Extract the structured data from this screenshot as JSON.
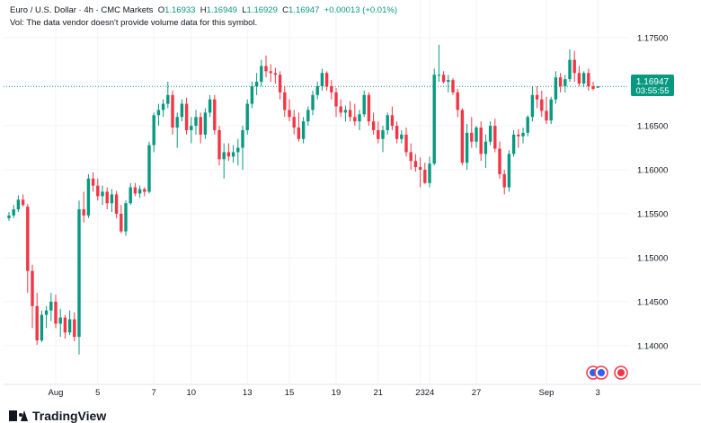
{
  "header": {
    "symbol": "Euro / U.S. Dollar · 4h · CMC Markets",
    "o_label": "O",
    "o_value": "1.16933",
    "h_label": "H",
    "h_value": "1.16949",
    "l_label": "L",
    "l_value": "1.16929",
    "c_label": "C",
    "c_value": "1.16947",
    "change": "+0.00013 (+0.01%)",
    "vol_note": "Vol: The data vendor doesn't provide volume data for this symbol."
  },
  "price_label": {
    "value": "1.16947",
    "countdown": "03:55:55"
  },
  "branding": {
    "name": "TradingView"
  },
  "colors": {
    "up": "#089981",
    "down": "#f23645",
    "grid": "#f0f3fa",
    "axis_text": "#131722",
    "price_line": "#089981"
  },
  "chart_data": {
    "type": "candlestick",
    "title": "Euro / U.S. Dollar · 4h · CMC Markets",
    "ylim": [
      1.1356,
      1.1793
    ],
    "y_ticks": [
      "1.17500",
      "1.17000",
      "1.16500",
      "1.16000",
      "1.15500",
      "1.15000",
      "1.14500",
      "1.14000"
    ],
    "x_ticks": [
      {
        "label": "Aug",
        "index": 10
      },
      {
        "label": "5",
        "index": 19
      },
      {
        "label": "7",
        "index": 31
      },
      {
        "label": "10",
        "index": 39
      },
      {
        "label": "13",
        "index": 51
      },
      {
        "label": "15",
        "index": 60
      },
      {
        "label": "19",
        "index": 70
      },
      {
        "label": "21",
        "index": 79
      },
      {
        "label": "23",
        "index": 88
      },
      {
        "label": "24",
        "index": 90
      },
      {
        "label": "27",
        "index": 100
      },
      {
        "label": "Sep",
        "index": 115
      },
      {
        "label": "3",
        "index": 126
      }
    ],
    "ohlc": [
      [
        1.1545,
        1.1552,
        1.1542,
        1.1548
      ],
      [
        1.1548,
        1.156,
        1.1545,
        1.1555
      ],
      [
        1.1555,
        1.1571,
        1.1552,
        1.1566
      ],
      [
        1.1566,
        1.1572,
        1.1558,
        1.156
      ],
      [
        1.1558,
        1.1561,
        1.146,
        1.1485
      ],
      [
        1.1485,
        1.1492,
        1.142,
        1.1445
      ],
      [
        1.1445,
        1.146,
        1.1401,
        1.1406
      ],
      [
        1.1406,
        1.144,
        1.1404,
        1.1435
      ],
      [
        1.1435,
        1.1445,
        1.142,
        1.144
      ],
      [
        1.144,
        1.146,
        1.1428,
        1.145
      ],
      [
        1.145,
        1.1458,
        1.142,
        1.1425
      ],
      [
        1.1425,
        1.1442,
        1.141,
        1.1432
      ],
      [
        1.1432,
        1.1435,
        1.1408,
        1.1415
      ],
      [
        1.1415,
        1.144,
        1.1412,
        1.143
      ],
      [
        1.143,
        1.1438,
        1.1405,
        1.141
      ],
      [
        1.141,
        1.1565,
        1.139,
        1.1555
      ],
      [
        1.1555,
        1.1575,
        1.154,
        1.1548
      ],
      [
        1.1548,
        1.1595,
        1.1545,
        1.159
      ],
      [
        1.159,
        1.1597,
        1.1575,
        1.1582
      ],
      [
        1.1582,
        1.159,
        1.1565,
        1.157
      ],
      [
        1.157,
        1.1582,
        1.156,
        1.1575
      ],
      [
        1.1575,
        1.158,
        1.1555,
        1.1562
      ],
      [
        1.1562,
        1.1578,
        1.1552,
        1.1572
      ],
      [
        1.1572,
        1.1576,
        1.1545,
        1.155
      ],
      [
        1.155,
        1.156,
        1.1528,
        1.153
      ],
      [
        1.153,
        1.1565,
        1.1525,
        1.1562
      ],
      [
        1.1562,
        1.1585,
        1.156,
        1.158
      ],
      [
        1.158,
        1.1585,
        1.157,
        1.1573
      ],
      [
        1.1573,
        1.1582,
        1.1568,
        1.1578
      ],
      [
        1.1578,
        1.158,
        1.157,
        1.1575
      ],
      [
        1.1575,
        1.1632,
        1.1573,
        1.1628
      ],
      [
        1.1628,
        1.1665,
        1.162,
        1.1662
      ],
      [
        1.1662,
        1.1675,
        1.165,
        1.1668
      ],
      [
        1.1668,
        1.168,
        1.166,
        1.1675
      ],
      [
        1.1675,
        1.17,
        1.167,
        1.1685
      ],
      [
        1.1685,
        1.169,
        1.164,
        1.1648
      ],
      [
        1.1648,
        1.1665,
        1.1625,
        1.166
      ],
      [
        1.166,
        1.168,
        1.1655,
        1.1675
      ],
      [
        1.1675,
        1.1682,
        1.164,
        1.1645
      ],
      [
        1.1645,
        1.166,
        1.163,
        1.165
      ],
      [
        1.165,
        1.1668,
        1.164,
        1.166
      ],
      [
        1.166,
        1.1665,
        1.163,
        1.164
      ],
      [
        1.164,
        1.167,
        1.1635,
        1.1665
      ],
      [
        1.1665,
        1.1685,
        1.166,
        1.168
      ],
      [
        1.168,
        1.1685,
        1.164,
        1.1645
      ],
      [
        1.1645,
        1.165,
        1.1605,
        1.1612
      ],
      [
        1.1612,
        1.163,
        1.159,
        1.162
      ],
      [
        1.162,
        1.163,
        1.161,
        1.1615
      ],
      [
        1.1615,
        1.1628,
        1.1608,
        1.162
      ],
      [
        1.162,
        1.1635,
        1.1605,
        1.1625
      ],
      [
        1.1625,
        1.165,
        1.16,
        1.1645
      ],
      [
        1.1645,
        1.168,
        1.164,
        1.1675
      ],
      [
        1.1675,
        1.17,
        1.167,
        1.1695
      ],
      [
        1.1695,
        1.171,
        1.1685,
        1.17
      ],
      [
        1.17,
        1.1725,
        1.1695,
        1.1718
      ],
      [
        1.1718,
        1.173,
        1.1705,
        1.1712
      ],
      [
        1.1712,
        1.172,
        1.17,
        1.171
      ],
      [
        1.171,
        1.1716,
        1.1698,
        1.1708
      ],
      [
        1.1708,
        1.1712,
        1.168,
        1.1688
      ],
      [
        1.1688,
        1.1695,
        1.166,
        1.1668
      ],
      [
        1.1668,
        1.168,
        1.1655,
        1.166
      ],
      [
        1.166,
        1.1668,
        1.164,
        1.1648
      ],
      [
        1.1648,
        1.1665,
        1.1632,
        1.1635
      ],
      [
        1.1635,
        1.166,
        1.163,
        1.1655
      ],
      [
        1.1655,
        1.1672,
        1.165,
        1.1668
      ],
      [
        1.1668,
        1.169,
        1.1662,
        1.1685
      ],
      [
        1.1685,
        1.17,
        1.168,
        1.1695
      ],
      [
        1.1695,
        1.1715,
        1.169,
        1.171
      ],
      [
        1.171,
        1.1712,
        1.169,
        1.1695
      ],
      [
        1.1695,
        1.1702,
        1.168,
        1.1688
      ],
      [
        1.1688,
        1.1693,
        1.166,
        1.1672
      ],
      [
        1.1672,
        1.168,
        1.166,
        1.1665
      ],
      [
        1.1665,
        1.1673,
        1.1655,
        1.1668
      ],
      [
        1.1668,
        1.1678,
        1.1655,
        1.166
      ],
      [
        1.166,
        1.1675,
        1.165,
        1.1655
      ],
      [
        1.1655,
        1.1668,
        1.1645,
        1.1663
      ],
      [
        1.1663,
        1.169,
        1.166,
        1.1685
      ],
      [
        1.1685,
        1.1688,
        1.165,
        1.1655
      ],
      [
        1.1655,
        1.1665,
        1.164,
        1.1645
      ],
      [
        1.1645,
        1.1655,
        1.163,
        1.1635
      ],
      [
        1.1635,
        1.165,
        1.162,
        1.1645
      ],
      [
        1.1645,
        1.1665,
        1.164,
        1.1662
      ],
      [
        1.1662,
        1.1672,
        1.1645,
        1.165
      ],
      [
        1.165,
        1.1655,
        1.163,
        1.1635
      ],
      [
        1.1635,
        1.1645,
        1.163,
        1.164
      ],
      [
        1.164,
        1.1648,
        1.1615,
        1.162
      ],
      [
        1.162,
        1.163,
        1.16,
        1.161
      ],
      [
        1.161,
        1.1618,
        1.1598,
        1.1603
      ],
      [
        1.1603,
        1.1614,
        1.158,
        1.16
      ],
      [
        1.16,
        1.1608,
        1.1584,
        1.1585
      ],
      [
        1.1585,
        1.1615,
        1.158,
        1.1607
      ],
      [
        1.1607,
        1.1715,
        1.1605,
        1.1708
      ],
      [
        1.1708,
        1.1742,
        1.17,
        1.1708
      ],
      [
        1.1708,
        1.1712,
        1.1698,
        1.17
      ],
      [
        1.17,
        1.1708,
        1.1688,
        1.1702
      ],
      [
        1.1702,
        1.1704,
        1.1685,
        1.1688
      ],
      [
        1.1688,
        1.1692,
        1.166,
        1.1668
      ],
      [
        1.1668,
        1.167,
        1.1605,
        1.1608
      ],
      [
        1.1608,
        1.1652,
        1.16,
        1.1642
      ],
      [
        1.1642,
        1.166,
        1.1625,
        1.1632
      ],
      [
        1.1632,
        1.165,
        1.1625,
        1.1648
      ],
      [
        1.1648,
        1.1655,
        1.161,
        1.1618
      ],
      [
        1.1618,
        1.164,
        1.1602,
        1.1632
      ],
      [
        1.1632,
        1.1655,
        1.1628,
        1.165
      ],
      [
        1.165,
        1.1658,
        1.162,
        1.1624
      ],
      [
        1.1624,
        1.1632,
        1.159,
        1.1595
      ],
      [
        1.1595,
        1.16,
        1.1572,
        1.158
      ],
      [
        1.158,
        1.1622,
        1.1575,
        1.1618
      ],
      [
        1.1618,
        1.1645,
        1.1615,
        1.164
      ],
      [
        1.164,
        1.1646,
        1.1625,
        1.1638
      ],
      [
        1.1638,
        1.1648,
        1.163,
        1.1642
      ],
      [
        1.1642,
        1.1662,
        1.1638,
        1.166
      ],
      [
        1.166,
        1.1695,
        1.1655,
        1.1685
      ],
      [
        1.1685,
        1.1695,
        1.167,
        1.168
      ],
      [
        1.168,
        1.169,
        1.166,
        1.1667
      ],
      [
        1.1667,
        1.1683,
        1.1652,
        1.1656
      ],
      [
        1.1656,
        1.1683,
        1.1652,
        1.168
      ],
      [
        1.168,
        1.1712,
        1.1675,
        1.1705
      ],
      [
        1.1705,
        1.171,
        1.1688,
        1.1695
      ],
      [
        1.1695,
        1.1708,
        1.1688,
        1.1703
      ],
      [
        1.1703,
        1.1737,
        1.17,
        1.1725
      ],
      [
        1.1725,
        1.1735,
        1.17,
        1.171
      ],
      [
        1.171,
        1.1718,
        1.1695,
        1.1698
      ],
      [
        1.1698,
        1.1712,
        1.1694,
        1.171
      ],
      [
        1.171,
        1.1715,
        1.169,
        1.1695
      ],
      [
        1.1695,
        1.17,
        1.169,
        1.1692
      ],
      [
        1.16933,
        1.16949,
        1.16929,
        1.16947
      ]
    ]
  }
}
